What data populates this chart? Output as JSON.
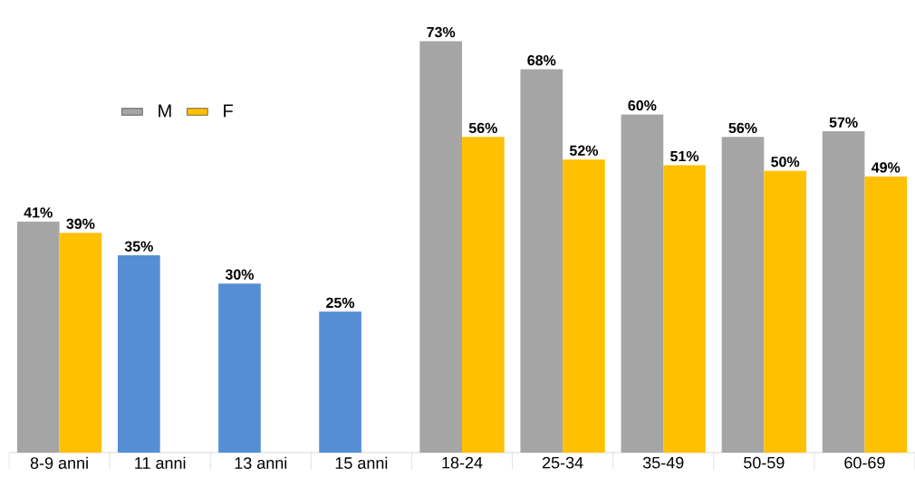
{
  "chart_data": {
    "type": "bar",
    "categories": [
      "8-9 anni",
      "11 anni",
      "13 anni",
      "15 anni",
      "18-24",
      "25-34",
      "35-49",
      "50-59",
      "60-69"
    ],
    "series": [
      {
        "name": "M",
        "color": "#a5a5a5",
        "values": [
          41,
          null,
          null,
          null,
          73,
          68,
          60,
          56,
          57
        ],
        "value_labels": [
          "41%",
          null,
          null,
          null,
          "73%",
          "68%",
          "60%",
          "56%",
          "57%"
        ]
      },
      {
        "name": "F",
        "color": "#ffc000",
        "values": [
          39,
          null,
          null,
          null,
          56,
          52,
          51,
          50,
          49
        ],
        "value_labels": [
          "39%",
          null,
          null,
          null,
          "56%",
          "52%",
          "51%",
          "50%",
          "49%"
        ]
      },
      {
        "color": "#558ed5",
        "values": [
          null,
          35,
          30,
          25,
          null,
          null,
          null,
          null,
          null
        ],
        "value_labels": [
          null,
          "35%",
          "30%",
          "25%",
          null,
          null,
          null,
          null,
          null
        ]
      }
    ],
    "legend": "top left"
  }
}
